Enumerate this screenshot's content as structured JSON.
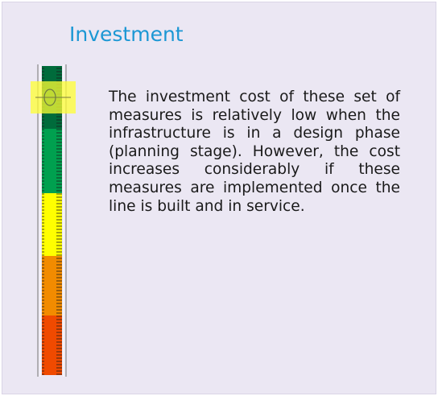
{
  "header": {
    "title": "Investment"
  },
  "body": {
    "text": "The investment cost of these set of measures is relatively low when the infrastructure is in a design phase (planning stage). However, the cost increases considerably if these measures are implemented once the line is built and in service."
  }
}
